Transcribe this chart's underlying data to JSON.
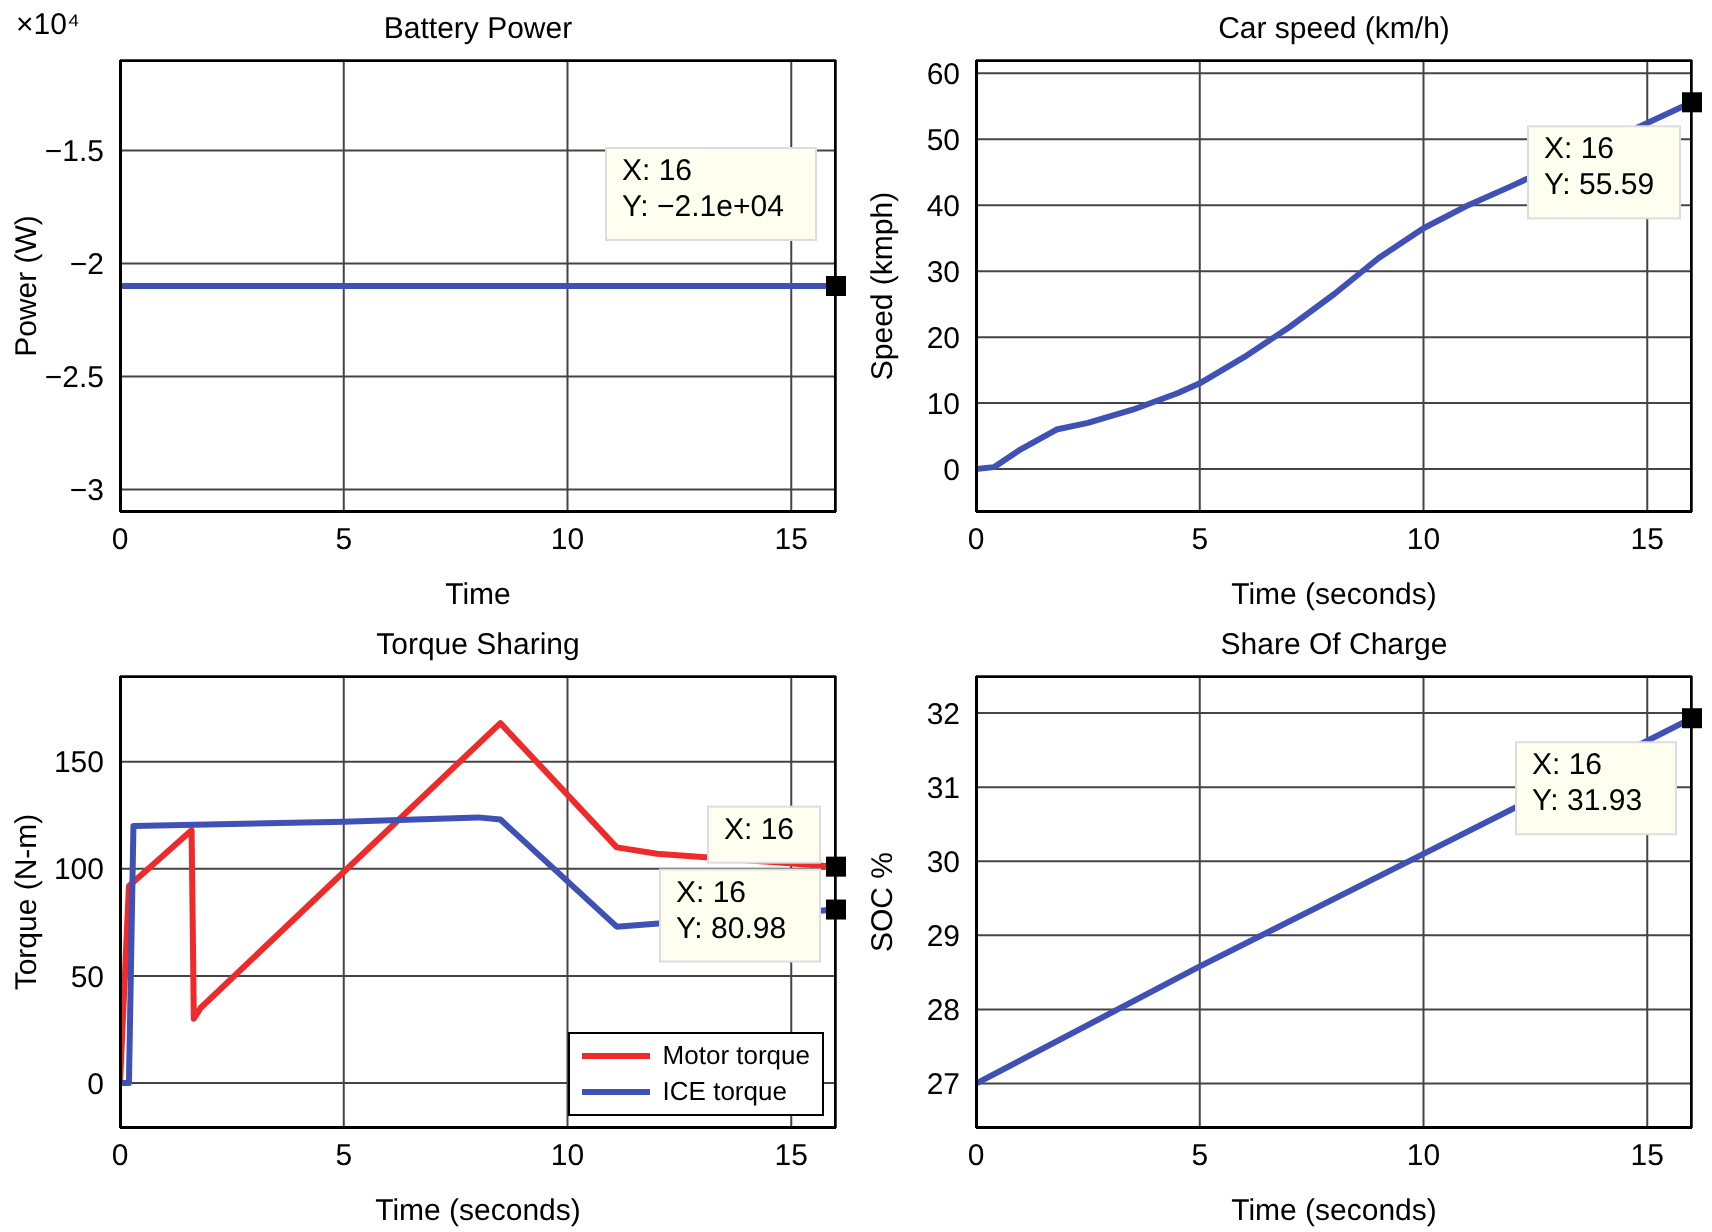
{
  "chart_data": [
    {
      "type": "line",
      "title": "Battery Power",
      "xlabel": "Time",
      "ylabel": "Power (W)",
      "xlim": [
        0,
        16
      ],
      "xticks": [
        0,
        5,
        10,
        15
      ],
      "ylim": [
        -3.1,
        -1.1
      ],
      "yticks": [
        {
          "value": -3,
          "label": "−3"
        },
        {
          "value": -2.5,
          "label": "−2.5"
        },
        {
          "value": -2,
          "label": "−2"
        },
        {
          "value": -1.5,
          "label": "−1.5"
        }
      ],
      "grid": true,
      "series": [
        {
          "color": "#3f51b5",
          "x": [
            0,
            16
          ],
          "values": [
            -2.1,
            -2.1
          ]
        }
      ],
      "annotations": [
        "×10⁴",
        "X: 16\nY: −2.1e+04"
      ]
    },
    {
      "type": "line",
      "title": "Car speed (km/h)",
      "xlabel": "Time (seconds)",
      "ylabel": "Speed (kmph)",
      "xlim": [
        0,
        16
      ],
      "xticks": [
        0,
        5,
        10,
        15
      ],
      "ylim": [
        -6.5,
        62
      ],
      "yticks": [
        0,
        10,
        20,
        30,
        40,
        50,
        60
      ],
      "grid": true,
      "series": [
        {
          "color": "#3f51b5",
          "x": [
            0,
            0.4,
            1,
            1.8,
            2.5,
            3.5,
            4.5,
            5,
            6,
            7,
            8,
            9,
            10,
            11,
            12,
            16
          ],
          "values": [
            0,
            0.3,
            3,
            6,
            7,
            9,
            11.5,
            13,
            17,
            21.5,
            26.5,
            32,
            36.5,
            40,
            43,
            55.59
          ]
        }
      ],
      "annotations": [
        "X: 16\nY: 55.59"
      ]
    },
    {
      "type": "line",
      "title": "Torque Sharing",
      "xlabel": "Time (seconds)",
      "ylabel": "Torque (N-m)",
      "xlim": [
        0,
        16
      ],
      "xticks": [
        0,
        5,
        10,
        15
      ],
      "ylim": [
        -21,
        190
      ],
      "yticks": [
        0,
        50,
        100,
        150
      ],
      "grid": true,
      "legend": "bottom right",
      "series": [
        {
          "name": "Motor torque",
          "color": "#ee2a2a",
          "x": [
            0,
            0.2,
            1.6,
            1.65,
            1.8,
            8.5,
            11.1,
            12,
            16
          ],
          "values": [
            0,
            92,
            118,
            30,
            35,
            168,
            110,
            107,
            101
          ]
        },
        {
          "name": "ICE torque",
          "color": "#3f51b5",
          "x": [
            0,
            0.2,
            0.3,
            5,
            8,
            8.5,
            11.1,
            16
          ],
          "values": [
            0,
            0,
            120,
            122,
            124,
            123,
            73,
            80.98
          ]
        }
      ],
      "annotations": [
        "X: 16",
        "X: 16\nY: 80.98"
      ]
    },
    {
      "type": "line",
      "title": "Share Of Charge",
      "xlabel": "Time (seconds)",
      "ylabel": "SOC %",
      "xlim": [
        0,
        16
      ],
      "xticks": [
        0,
        5,
        10,
        15
      ],
      "ylim": [
        26.4,
        32.5
      ],
      "yticks": [
        27,
        28,
        29,
        30,
        31,
        32
      ],
      "grid": true,
      "series": [
        {
          "color": "#3f51b5",
          "x": [
            0,
            5,
            10,
            16
          ],
          "values": [
            27,
            28.58,
            30.1,
            31.93
          ]
        }
      ],
      "annotations": [
        "X: 16\nY: 31.93"
      ]
    }
  ]
}
